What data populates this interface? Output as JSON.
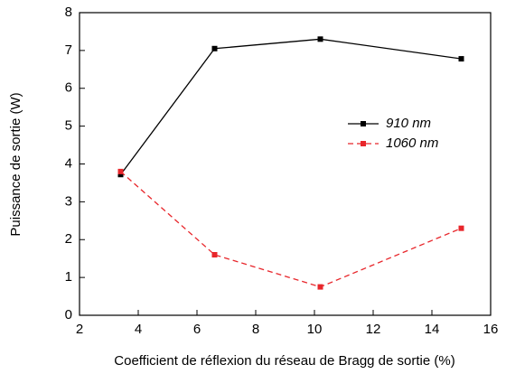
{
  "chart_data": {
    "type": "line",
    "xlabel": "Coefficient de réflexion du réseau de Bragg de sortie (%)",
    "ylabel": "Puissance de sortie (W)",
    "x": [
      3.4,
      6.6,
      10.2,
      15.0
    ],
    "series": [
      {
        "name": "910 nm",
        "color": "#000000",
        "dash": false,
        "values": [
          3.72,
          7.05,
          7.3,
          6.78
        ]
      },
      {
        "name": "1060 nm",
        "color": "#e8262b",
        "dash": true,
        "values": [
          3.8,
          1.6,
          0.75,
          2.3
        ]
      }
    ],
    "xlim": [
      2,
      16
    ],
    "xticks": [
      2,
      4,
      6,
      8,
      10,
      12,
      14,
      16
    ],
    "ylim": [
      0,
      8
    ],
    "yticks": [
      0,
      1,
      2,
      3,
      4,
      5,
      6,
      7,
      8
    ],
    "legend": "right"
  }
}
